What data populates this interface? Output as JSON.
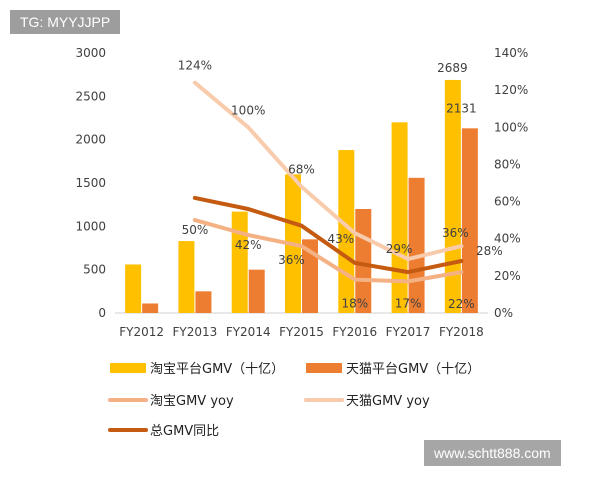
{
  "watermark_top": "TG: MYYJJPP",
  "watermark_bottom": "www.schtt888.com",
  "colors": {
    "taobao_gmv": "#FFC000",
    "tmall_gmv": "#ED7D31",
    "taobao_yoy": "#F4B183",
    "tmall_yoy": "#F8CBAD",
    "total_yoy": "#C55A11",
    "axis_text": "#404040"
  },
  "chart_data": {
    "type": "bar",
    "categories": [
      "FY2012",
      "FY2013",
      "FY2014",
      "FY2015",
      "FY2016",
      "FY2017",
      "FY2018"
    ],
    "y_left": {
      "min": 0,
      "max": 3000,
      "ticks": [
        0,
        500,
        1000,
        1500,
        2000,
        2500,
        3000
      ]
    },
    "y_right": {
      "min": 0,
      "max": 140,
      "ticks": [
        "0%",
        "20%",
        "40%",
        "60%",
        "80%",
        "100%",
        "120%",
        "140%"
      ]
    },
    "grid": false,
    "legend_position": "bottom",
    "bar_series": [
      {
        "name": "淘宝平台GMV（十亿）",
        "axis": "left",
        "values": [
          560,
          830,
          1170,
          1600,
          1880,
          2200,
          2689
        ]
      },
      {
        "name": "天猫平台GMV（十亿）",
        "axis": "left",
        "values": [
          110,
          250,
          500,
          850,
          1200,
          1560,
          2131
        ]
      }
    ],
    "line_series": [
      {
        "name": "淘宝GMV yoy",
        "axis": "right",
        "values": [
          null,
          50,
          42,
          36,
          18,
          17,
          22
        ]
      },
      {
        "name": "天猫GMV yoy",
        "axis": "right",
        "values": [
          null,
          124,
          100,
          68,
          43,
          29,
          36
        ]
      },
      {
        "name": "总GMV同比",
        "axis": "right",
        "values": [
          null,
          62,
          56,
          47,
          27,
          22,
          28
        ]
      }
    ],
    "data_labels": [
      {
        "text": "124%",
        "series": "天猫GMV yoy",
        "category": "FY2013"
      },
      {
        "text": "100%",
        "series": "天猫GMV yoy",
        "category": "FY2014"
      },
      {
        "text": "68%",
        "series": "天猫GMV yoy",
        "category": "FY2015"
      },
      {
        "text": "43%",
        "series": "天猫GMV yoy",
        "category": "FY2016"
      },
      {
        "text": "29%",
        "series": "天猫GMV yoy",
        "category": "FY2017"
      },
      {
        "text": "36%",
        "series": "天猫GMV yoy",
        "category": "FY2018"
      },
      {
        "text": "50%",
        "series": "淘宝GMV yoy",
        "category": "FY2013"
      },
      {
        "text": "42%",
        "series": "淘宝GMV yoy",
        "category": "FY2014"
      },
      {
        "text": "36%",
        "series": "淘宝GMV yoy",
        "category": "FY2015"
      },
      {
        "text": "18%",
        "series": "淘宝GMV yoy",
        "category": "FY2016"
      },
      {
        "text": "17%",
        "series": "淘宝GMV yoy",
        "category": "FY2017"
      },
      {
        "text": "22%",
        "series": "淘宝GMV yoy",
        "category": "FY2018"
      },
      {
        "text": "28%",
        "series": "总GMV同比",
        "category": "FY2018"
      },
      {
        "text": "2689",
        "series": "淘宝平台GMV（十亿）",
        "category": "FY2018"
      },
      {
        "text": "2131",
        "series": "天猫平台GMV（十亿）",
        "category": "FY2018"
      }
    ]
  }
}
